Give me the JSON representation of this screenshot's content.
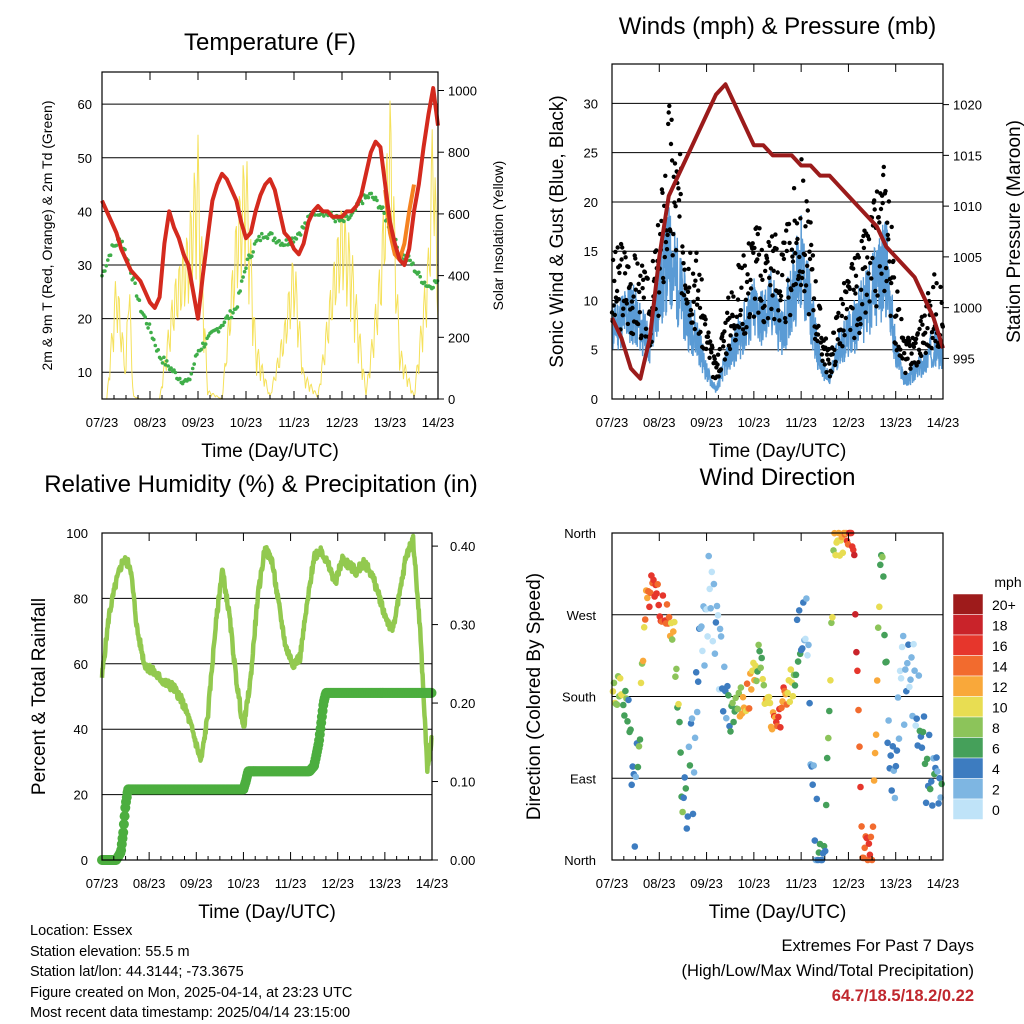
{
  "chart_data": [
    {
      "type": "line",
      "title": "Temperature (F)",
      "xlabel": "Time (Day/UTC)",
      "ylabel": "2m & 9m T (Red, Orange) & 2m Td (Green)",
      "y2label": "Solar Insolation (Yellow)",
      "x_ticks": [
        "07/23",
        "08/23",
        "09/23",
        "10/23",
        "11/23",
        "12/23",
        "13/23",
        "14/23"
      ],
      "xlim": [
        0,
        7
      ],
      "ylim": [
        5,
        66
      ],
      "y_ticks": [
        10,
        20,
        30,
        40,
        50,
        60
      ],
      "y2lim": [
        0,
        1060
      ],
      "y2_ticks": [
        0,
        200,
        400,
        600,
        800,
        1000
      ],
      "grid": true,
      "colors": {
        "temp2m": "#d42a1e",
        "temp9m": "#f58220",
        "dewpoint": "#3fae49",
        "solar": "#f5e15a"
      },
      "series": [
        {
          "name": "2m T",
          "x": [
            0,
            0.1,
            0.2,
            0.3,
            0.4,
            0.5,
            0.6,
            0.7,
            0.8,
            0.9,
            1.0,
            1.1,
            1.2,
            1.3,
            1.4,
            1.5,
            1.6,
            1.7,
            1.8,
            1.9,
            2.0,
            2.1,
            2.2,
            2.3,
            2.4,
            2.5,
            2.6,
            2.7,
            2.8,
            2.9,
            3.0,
            3.1,
            3.2,
            3.3,
            3.4,
            3.5,
            3.6,
            3.7,
            3.8,
            3.9,
            4.0,
            4.1,
            4.2,
            4.3,
            4.4,
            4.5,
            4.6,
            4.7,
            4.8,
            4.9,
            5.0,
            5.1,
            5.2,
            5.3,
            5.4,
            5.5,
            5.6,
            5.7,
            5.8,
            5.9,
            6.0,
            6.1,
            6.2,
            6.3,
            6.4,
            6.5,
            6.6,
            6.7,
            6.8,
            6.9,
            7.0
          ],
          "values": [
            42,
            40,
            38,
            36,
            33,
            31,
            29,
            28,
            27,
            25,
            23,
            22,
            24,
            34,
            40,
            37,
            35,
            32,
            30,
            25,
            20,
            28,
            35,
            42,
            45,
            47,
            46,
            44,
            42,
            38,
            35,
            36,
            40,
            43,
            45,
            46,
            44,
            40,
            36,
            35,
            33,
            32,
            34,
            38,
            40,
            41,
            40,
            40,
            39,
            39,
            39,
            40,
            40,
            41,
            43,
            47,
            51,
            53,
            52,
            45,
            38,
            34,
            31,
            30,
            33,
            40,
            45,
            52,
            58,
            63,
            56
          ]
        },
        {
          "name": "9m T",
          "x": [
            5.9,
            6.0,
            6.1,
            6.2,
            6.3,
            6.4,
            6.5
          ],
          "values": [
            44,
            36,
            32,
            31,
            34,
            40,
            45
          ]
        },
        {
          "name": "2m Td",
          "x": [
            0,
            0.2,
            0.4,
            0.6,
            0.8,
            1.0,
            1.2,
            1.4,
            1.6,
            1.8,
            2.0,
            2.2,
            2.4,
            2.6,
            2.8,
            3.0,
            3.2,
            3.4,
            3.6,
            3.8,
            4.0,
            4.2,
            4.4,
            4.6,
            4.8,
            5.0,
            5.2,
            5.4,
            5.6,
            5.8,
            6.0,
            6.2,
            6.4,
            6.6,
            6.8,
            7.0
          ],
          "values": [
            28,
            33,
            35,
            29,
            22,
            18,
            13,
            11,
            9,
            8,
            14,
            16,
            18,
            20,
            22,
            30,
            34,
            36,
            35,
            34,
            35,
            37,
            40,
            40,
            39,
            38,
            39,
            42,
            43,
            41,
            37,
            32,
            31,
            28,
            26,
            27
          ]
        },
        {
          "name": "Solar",
          "x": [
            0.1,
            0.3,
            0.5,
            0.55,
            0.65,
            0.8,
            1.2,
            1.5,
            1.8,
            2.0,
            2.2,
            2.5,
            2.8,
            3.0,
            3.2,
            3.5,
            3.8,
            4.0,
            4.2,
            4.5,
            4.8,
            5.0,
            5.2,
            5.5,
            5.8,
            6.0,
            6.2,
            6.5,
            6.8,
            6.9,
            7.0
          ],
          "values": [
            0,
            430,
            100,
            500,
            10,
            0,
            0,
            380,
            560,
            860,
            30,
            0,
            600,
            840,
            200,
            10,
            250,
            500,
            90,
            10,
            420,
            650,
            500,
            20,
            460,
            1000,
            180,
            10,
            500,
            1000,
            400
          ]
        }
      ]
    },
    {
      "type": "scatter",
      "title": "Winds (mph) & Pressure (mb)",
      "xlabel": "Time (Day/UTC)",
      "ylabel": "Sonic Wind & Gust (Blue, Black)",
      "y2label": "Station Pressure (Maroon)",
      "x_ticks": [
        "07/23",
        "08/23",
        "09/23",
        "10/23",
        "11/23",
        "12/23",
        "13/23",
        "14/23"
      ],
      "xlim": [
        0,
        7
      ],
      "ylim": [
        0,
        34
      ],
      "y_ticks": [
        0,
        5,
        10,
        15,
        20,
        25,
        30
      ],
      "y2lim": [
        991,
        1024
      ],
      "y2_ticks": [
        995,
        1000,
        1005,
        1010,
        1015,
        1020
      ],
      "grid": true,
      "colors": {
        "wind": "#5a9bd5",
        "gust": "#000000",
        "pressure": "#9b1b1b"
      },
      "series": [
        {
          "name": "Wind",
          "x": [
            0,
            0.2,
            0.4,
            0.6,
            0.8,
            1.0,
            1.2,
            1.4,
            1.6,
            1.8,
            2.0,
            2.2,
            2.4,
            2.6,
            2.8,
            3.0,
            3.2,
            3.4,
            3.6,
            3.8,
            4.0,
            4.2,
            4.4,
            4.6,
            4.8,
            5.0,
            5.2,
            5.4,
            5.6,
            5.8,
            6.0,
            6.2,
            6.4,
            6.6,
            6.8,
            7.0
          ],
          "values": [
            8,
            9,
            10,
            8,
            6,
            12,
            16,
            13,
            9,
            7,
            3,
            1,
            4,
            6,
            8,
            10,
            9,
            11,
            7,
            12,
            15,
            10,
            4,
            2,
            6,
            7,
            9,
            11,
            13,
            15,
            5,
            2,
            3,
            4,
            6,
            5
          ]
        },
        {
          "name": "Gust",
          "x": [
            0,
            0.2,
            0.4,
            0.6,
            0.8,
            1.0,
            1.2,
            1.4,
            1.6,
            1.8,
            2.0,
            2.2,
            2.4,
            2.6,
            2.8,
            3.0,
            3.2,
            3.4,
            3.6,
            3.8,
            4.0,
            4.2,
            4.4,
            4.6,
            4.8,
            5.0,
            5.2,
            5.4,
            5.6,
            5.8,
            6.0,
            6.2,
            6.4,
            6.6,
            6.8,
            7.0
          ],
          "values": [
            12,
            14,
            13,
            12,
            10,
            16,
            26,
            22,
            17,
            13,
            7,
            3,
            8,
            11,
            13,
            16,
            14,
            16,
            13,
            17,
            21,
            15,
            8,
            4,
            9,
            11,
            13,
            15,
            18,
            22,
            10,
            5,
            6,
            8,
            11,
            9
          ]
        },
        {
          "name": "Pressure",
          "x": [
            0,
            0.2,
            0.4,
            0.6,
            0.8,
            1.0,
            1.2,
            1.4,
            1.6,
            1.8,
            2.0,
            2.2,
            2.4,
            2.6,
            2.8,
            3.0,
            3.2,
            3.4,
            3.6,
            3.8,
            4.0,
            4.2,
            4.4,
            4.6,
            4.8,
            5.0,
            5.2,
            5.4,
            5.6,
            5.8,
            6.0,
            6.2,
            6.4,
            6.6,
            6.8,
            7.0
          ],
          "values": [
            999,
            997,
            994,
            993,
            997,
            1005,
            1011,
            1013,
            1015,
            1017,
            1019,
            1021,
            1022,
            1020,
            1018,
            1016,
            1016,
            1015,
            1015,
            1015,
            1014,
            1014,
            1013,
            1013,
            1012,
            1011,
            1010,
            1009,
            1008,
            1006,
            1005,
            1004,
            1003,
            1001,
            999,
            996
          ]
        }
      ]
    },
    {
      "type": "line",
      "title": "Relative Humidity (%) & Precipitation (in)",
      "xlabel": "Time (Day/UTC)",
      "ylabel": "Percent & Total Rainfall",
      "x_ticks": [
        "07/23",
        "08/23",
        "09/23",
        "10/23",
        "11/23",
        "12/23",
        "13/23",
        "14/23"
      ],
      "xlim": [
        0,
        7
      ],
      "ylim": [
        0,
        100
      ],
      "y_ticks": [
        0,
        20,
        40,
        60,
        80,
        100
      ],
      "y2lim": [
        0,
        0.4167
      ],
      "y2_ticks": [
        "0.00",
        "0.10",
        "0.20",
        "0.30",
        "0.40"
      ],
      "grid": true,
      "colors": {
        "rh": "#92c94f",
        "precip": "#4cae3f"
      },
      "series": [
        {
          "name": "RH",
          "x": [
            0,
            0.15,
            0.3,
            0.45,
            0.6,
            0.75,
            0.9,
            1.05,
            1.2,
            1.35,
            1.5,
            1.65,
            1.8,
            1.95,
            2.1,
            2.25,
            2.4,
            2.55,
            2.7,
            2.85,
            3.0,
            3.15,
            3.3,
            3.45,
            3.6,
            3.75,
            3.9,
            4.05,
            4.2,
            4.35,
            4.5,
            4.65,
            4.8,
            4.95,
            5.1,
            5.25,
            5.4,
            5.55,
            5.7,
            5.85,
            6.0,
            6.15,
            6.3,
            6.45,
            6.6,
            6.75,
            6.9,
            7.0
          ],
          "values": [
            56,
            75,
            85,
            92,
            90,
            70,
            60,
            58,
            56,
            54,
            53,
            50,
            45,
            38,
            30,
            45,
            70,
            89,
            75,
            55,
            40,
            55,
            80,
            95,
            92,
            78,
            65,
            60,
            62,
            78,
            93,
            95,
            90,
            85,
            92,
            90,
            88,
            91,
            88,
            82,
            75,
            70,
            80,
            93,
            98,
            70,
            28,
            38
          ]
        },
        {
          "name": "Precip",
          "x": [
            0,
            0.3,
            0.4,
            0.45,
            0.5,
            0.55,
            0.6,
            3.0,
            3.05,
            3.1,
            4.4,
            4.5,
            4.6,
            4.7,
            4.75,
            7.0
          ],
          "values": [
            0,
            0,
            0.01,
            0.035,
            0.07,
            0.09,
            0.09,
            0.09,
            0.1,
            0.113,
            0.113,
            0.12,
            0.15,
            0.2,
            0.213,
            0.213
          ]
        }
      ]
    },
    {
      "type": "scatter",
      "title": "Wind Direction",
      "xlabel": "Time (Day/UTC)",
      "ylabel": "Direction (Colored By Speed)",
      "x_ticks": [
        "07/23",
        "08/23",
        "09/23",
        "10/23",
        "11/23",
        "12/23",
        "13/23",
        "14/23"
      ],
      "xlim": [
        0,
        7
      ],
      "y_ticks": [
        "North",
        "East",
        "South",
        "West",
        "North"
      ],
      "ylim": [
        0,
        360
      ],
      "grid": true,
      "legend": {
        "title": "mph",
        "labels": [
          "20+",
          "18",
          "16",
          "14",
          "12",
          "10",
          "8",
          "6",
          "4",
          "2",
          "0"
        ],
        "colors": [
          "#9e1b1b",
          "#c9232a",
          "#e6362c",
          "#f26b2e",
          "#f9a83a",
          "#e8dd52",
          "#8cc45a",
          "#45a05a",
          "#3d7cc0",
          "#7eb6e2",
          "#bfe3f8"
        ]
      },
      "series": [
        {
          "name": "Direction",
          "x": [
            0.05,
            0.2,
            0.35,
            0.5,
            0.7,
            0.9,
            1.1,
            1.3,
            1.5,
            1.7,
            1.9,
            2.1,
            2.3,
            2.5,
            2.7,
            2.9,
            3.1,
            3.3,
            3.5,
            3.7,
            3.9,
            4.1,
            4.3,
            4.5,
            4.7,
            4.9,
            5.1,
            5.3,
            5.5,
            5.7,
            5.9,
            6.1,
            6.3,
            6.5,
            6.7,
            6.9
          ],
          "values": [
            182,
            185,
            170,
            40,
            280,
            300,
            270,
            260,
            60,
            100,
            240,
            300,
            200,
            160,
            175,
            185,
            220,
            170,
            150,
            190,
            200,
            300,
            10,
            5,
            350,
            355,
            360,
            15,
            5,
            360,
            60,
            200,
            220,
            160,
            100,
            70
          ],
          "speeds": [
            8,
            9,
            6,
            3,
            12,
            17,
            14,
            10,
            6,
            4,
            3,
            1,
            2,
            5,
            10,
            12,
            8,
            10,
            15,
            13,
            6,
            2,
            4,
            5,
            10,
            12,
            18,
            14,
            16,
            6,
            3,
            2,
            1,
            4,
            5,
            4
          ]
        }
      ]
    }
  ],
  "info": {
    "location": "Location: Essex",
    "elevation": "Station elevation: 55.5 m",
    "latlon": "Station lat/lon: 44.3144; -73.3675",
    "created": "Figure created on Mon, 2025-04-14, at 23:23 UTC",
    "recent": "Most recent data timestamp: 2025/04/14 23:15:00"
  },
  "extremes": {
    "line1": "Extremes For Past 7 Days",
    "line2": "(High/Low/Max Wind/Total Precipitation)",
    "values": "64.7/18.5/18.2/0.22"
  }
}
